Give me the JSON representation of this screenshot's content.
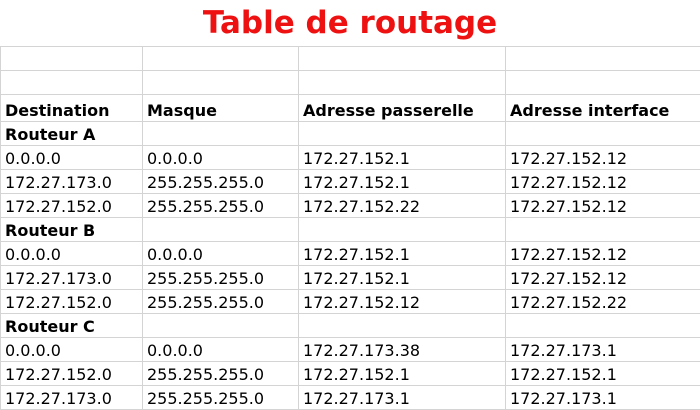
{
  "title": "Table de routage",
  "headers": {
    "destination": "Destination",
    "masque": "Masque",
    "passerelle": "Adresse passerelle",
    "interface": "Adresse interface"
  },
  "routers": [
    {
      "name": "Routeur A",
      "rows": [
        [
          "0.0.0.0",
          "0.0.0.0",
          "172.27.152.1",
          "172.27.152.12"
        ],
        [
          "172.27.173.0",
          "255.255.255.0",
          "172.27.152.1",
          "172.27.152.12"
        ],
        [
          "172.27.152.0",
          "255.255.255.0",
          "172.27.152.22",
          "172.27.152.12"
        ]
      ]
    },
    {
      "name": "Routeur B",
      "rows": [
        [
          "0.0.0.0",
          "0.0.0.0",
          "172.27.152.1",
          "172.27.152.12"
        ],
        [
          "172.27.173.0",
          "255.255.255.0",
          "172.27.152.1",
          "172.27.152.12"
        ],
        [
          "172.27.152.0",
          "255.255.255.0",
          "172.27.152.12",
          "172.27.152.22"
        ]
      ]
    },
    {
      "name": "Routeur C",
      "rows": [
        [
          "0.0.0.0",
          "0.0.0.0",
          "172.27.173.38",
          "172.27.173.1"
        ],
        [
          "172.27.152.0",
          "255.255.255.0",
          "172.27.152.1",
          "172.27.152.1"
        ],
        [
          "172.27.173.0",
          "255.255.255.0",
          "172.27.173.1",
          "172.27.173.1"
        ]
      ]
    }
  ],
  "colors": {
    "title": "#ee1111",
    "gridline": "#d4d4d4",
    "text": "#000000"
  }
}
